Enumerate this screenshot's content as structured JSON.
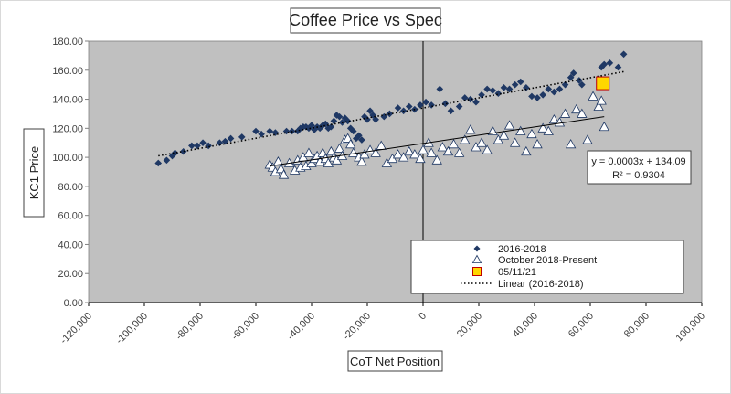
{
  "chart_data": {
    "type": "scatter",
    "title": "Coffee Price vs Spec",
    "xlabel": "CoT Net Position",
    "ylabel": "KC1 Price",
    "xlim": [
      -120000,
      100000
    ],
    "ylim": [
      0,
      180
    ],
    "x_ticks": [
      "-120,000",
      "-100,000",
      "-80,000",
      "-60,000",
      "-40,000",
      "-20,000",
      "0",
      "20,000",
      "40,000",
      "60,000",
      "80,000",
      "100,000"
    ],
    "y_ticks": [
      "0.00",
      "20.00",
      "40.00",
      "60.00",
      "80.00",
      "100.00",
      "120.00",
      "140.00",
      "160.00",
      "180.00"
    ],
    "grid": false,
    "legend_position": "bottom-right",
    "colors": {
      "plot_bg": "#C0C0C0",
      "series1": "#1F3864",
      "series2_stroke": "#1F3864",
      "series2_fill": "#FFFFFF",
      "series3_fill": "#FFD700",
      "series3_stroke": "#C00000",
      "trend": "#000000"
    },
    "annotation": {
      "equation": "y = 0.0003x + 134.09",
      "r2": "R² = 0.9304"
    },
    "series": [
      {
        "name": "2016-2018",
        "marker": "diamond",
        "points": [
          [
            -95000,
            96
          ],
          [
            -92000,
            98
          ],
          [
            -90000,
            101
          ],
          [
            -89000,
            103
          ],
          [
            -86000,
            104
          ],
          [
            -83000,
            108
          ],
          [
            -81000,
            108
          ],
          [
            -79000,
            110
          ],
          [
            -77000,
            108
          ],
          [
            -73000,
            110
          ],
          [
            -71000,
            111
          ],
          [
            -69000,
            113
          ],
          [
            -65000,
            114
          ],
          [
            -60000,
            118
          ],
          [
            -58000,
            116
          ],
          [
            -55000,
            118
          ],
          [
            -53000,
            117
          ],
          [
            -49000,
            118
          ],
          [
            -47000,
            118
          ],
          [
            -45000,
            118
          ],
          [
            -44000,
            120
          ],
          [
            -43000,
            121
          ],
          [
            -42000,
            121
          ],
          [
            -41000,
            120
          ],
          [
            -40000,
            122
          ],
          [
            -39000,
            119
          ],
          [
            -38000,
            121
          ],
          [
            -37000,
            120
          ],
          [
            -36000,
            122
          ],
          [
            -35000,
            123
          ],
          [
            -34000,
            120
          ],
          [
            -33000,
            121
          ],
          [
            -32000,
            125
          ],
          [
            -31000,
            129
          ],
          [
            -30000,
            128
          ],
          [
            -29000,
            124
          ],
          [
            -28000,
            127
          ],
          [
            -27000,
            125
          ],
          [
            -26000,
            120
          ],
          [
            -25000,
            118
          ],
          [
            -24000,
            113
          ],
          [
            -23000,
            115
          ],
          [
            -22000,
            112
          ],
          [
            -21000,
            128
          ],
          [
            -20000,
            126
          ],
          [
            -19000,
            132
          ],
          [
            -18000,
            129
          ],
          [
            -17000,
            126
          ],
          [
            -14000,
            128
          ],
          [
            -12000,
            130
          ],
          [
            -9000,
            134
          ],
          [
            -7000,
            132
          ],
          [
            -5000,
            135
          ],
          [
            -3000,
            133
          ],
          [
            -1000,
            136
          ],
          [
            1000,
            138
          ],
          [
            3000,
            136
          ],
          [
            6000,
            147
          ],
          [
            8000,
            137
          ],
          [
            10000,
            132
          ],
          [
            13000,
            135
          ],
          [
            15000,
            141
          ],
          [
            17000,
            140
          ],
          [
            19000,
            138
          ],
          [
            21000,
            143
          ],
          [
            23000,
            147
          ],
          [
            25000,
            146
          ],
          [
            27000,
            144
          ],
          [
            29000,
            148
          ],
          [
            31000,
            147
          ],
          [
            33000,
            150
          ],
          [
            35000,
            152
          ],
          [
            37000,
            148
          ],
          [
            39000,
            142
          ],
          [
            41000,
            141
          ],
          [
            43000,
            143
          ],
          [
            45000,
            147
          ],
          [
            47000,
            145
          ],
          [
            49000,
            147
          ],
          [
            51000,
            150
          ],
          [
            53000,
            155
          ],
          [
            54000,
            158
          ],
          [
            56000,
            153
          ],
          [
            57000,
            150
          ],
          [
            64000,
            162
          ],
          [
            65000,
            164
          ],
          [
            67000,
            165
          ],
          [
            70000,
            162
          ],
          [
            72000,
            171
          ]
        ]
      },
      {
        "name": "October 2018-Present",
        "marker": "triangle",
        "points": [
          [
            -55000,
            95
          ],
          [
            -54000,
            93
          ],
          [
            -53000,
            90
          ],
          [
            -52000,
            97
          ],
          [
            -51000,
            92
          ],
          [
            -50000,
            88
          ],
          [
            -48000,
            96
          ],
          [
            -46000,
            91
          ],
          [
            -45000,
            98
          ],
          [
            -44000,
            93
          ],
          [
            -43000,
            100
          ],
          [
            -42000,
            94
          ],
          [
            -41000,
            103
          ],
          [
            -40000,
            96
          ],
          [
            -39000,
            99
          ],
          [
            -38000,
            101
          ],
          [
            -37000,
            97
          ],
          [
            -36000,
            103
          ],
          [
            -35000,
            99
          ],
          [
            -34000,
            96
          ],
          [
            -33000,
            104
          ],
          [
            -32000,
            100
          ],
          [
            -31000,
            98
          ],
          [
            -30000,
            106
          ],
          [
            -29000,
            101
          ],
          [
            -28000,
            112
          ],
          [
            -27000,
            113
          ],
          [
            -26000,
            109
          ],
          [
            -25000,
            103
          ],
          [
            -23000,
            100
          ],
          [
            -22000,
            97
          ],
          [
            -21000,
            102
          ],
          [
            -19000,
            105
          ],
          [
            -17000,
            103
          ],
          [
            -15000,
            108
          ],
          [
            -13000,
            96
          ],
          [
            -11000,
            99
          ],
          [
            -9000,
            102
          ],
          [
            -7000,
            100
          ],
          [
            -5000,
            104
          ],
          [
            -3000,
            102
          ],
          [
            -1000,
            99
          ],
          [
            0,
            105
          ],
          [
            2000,
            110
          ],
          [
            3000,
            103
          ],
          [
            5000,
            98
          ],
          [
            7000,
            107
          ],
          [
            9000,
            104
          ],
          [
            11000,
            109
          ],
          [
            13000,
            103
          ],
          [
            15000,
            112
          ],
          [
            17000,
            119
          ],
          [
            19000,
            107
          ],
          [
            21000,
            110
          ],
          [
            23000,
            105
          ],
          [
            25000,
            118
          ],
          [
            27000,
            112
          ],
          [
            29000,
            115
          ],
          [
            31000,
            122
          ],
          [
            33000,
            110
          ],
          [
            35000,
            118
          ],
          [
            37000,
            104
          ],
          [
            39000,
            116
          ],
          [
            41000,
            109
          ],
          [
            43000,
            120
          ],
          [
            45000,
            118
          ],
          [
            47000,
            126
          ],
          [
            49000,
            124
          ],
          [
            51000,
            130
          ],
          [
            53000,
            109
          ],
          [
            55000,
            133
          ],
          [
            57000,
            130
          ],
          [
            59000,
            112
          ],
          [
            61000,
            142
          ],
          [
            63000,
            135
          ],
          [
            64000,
            139
          ],
          [
            65000,
            121
          ]
        ]
      },
      {
        "name": "05/11/21",
        "marker": "square",
        "points": [
          [
            64500,
            151
          ]
        ]
      },
      {
        "name": "Linear (2016-2018)",
        "marker": "dotted-line",
        "line": {
          "x": [
            -95000,
            72000
          ],
          "y": [
            101,
            159
          ]
        }
      }
    ],
    "trend_oct2018": {
      "x": [
        -55000,
        65000
      ],
      "y": [
        94,
        128
      ]
    }
  }
}
